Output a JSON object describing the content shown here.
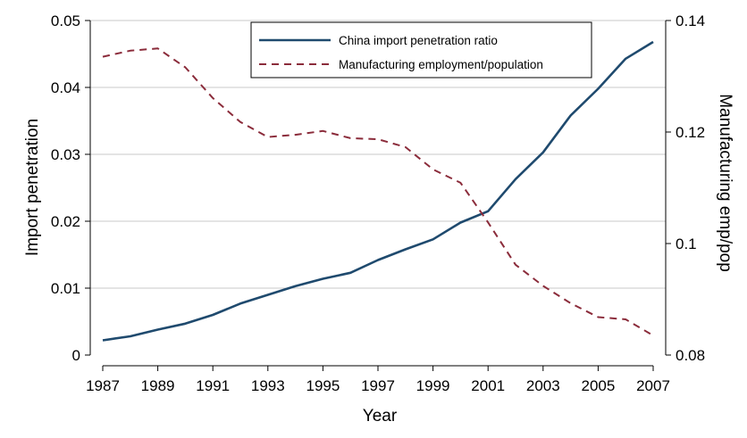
{
  "chart_data": {
    "type": "line",
    "xlabel": "Year",
    "ylabel_left": "Import penetration",
    "ylabel_right": "Manufacturing emp/pop",
    "xlim": [
      1987,
      2007
    ],
    "ylim_left": [
      0,
      0.05
    ],
    "ylim_right": [
      0.08,
      0.14
    ],
    "x_ticks": [
      1987,
      1989,
      1991,
      1993,
      1995,
      1997,
      1999,
      2001,
      2003,
      2005,
      2007
    ],
    "x_tick_labels": [
      "1987",
      "1989",
      "1991",
      "1993",
      "1995",
      "1997",
      "1999",
      "2001",
      "2003",
      "2005",
      "2007"
    ],
    "y_left_ticks": [
      0,
      0.01,
      0.02,
      0.03,
      0.04,
      0.05
    ],
    "y_left_tick_labels": [
      "0",
      "0.01",
      "0.02",
      "0.03",
      "0.04",
      "0.05"
    ],
    "y_right_ticks": [
      0.08,
      0.1,
      0.12,
      0.14
    ],
    "y_right_tick_labels": [
      "0.08",
      "0.1",
      "0.12",
      "0.14"
    ],
    "grid": true,
    "legend_position": "top-right",
    "x": [
      1987,
      1988,
      1989,
      1990,
      1991,
      1992,
      1993,
      1994,
      1995,
      1996,
      1997,
      1998,
      1999,
      2000,
      2001,
      2002,
      2003,
      2004,
      2005,
      2006,
      2007
    ],
    "series": [
      {
        "name": "China import penetration ratio",
        "axis": "left",
        "style": "solid",
        "color": "#1f4a6e",
        "values": [
          0.0022,
          0.0028,
          0.0038,
          0.0047,
          0.006,
          0.0077,
          0.009,
          0.0103,
          0.0114,
          0.0123,
          0.0142,
          0.0158,
          0.0173,
          0.0198,
          0.0215,
          0.0263,
          0.0303,
          0.0358,
          0.0398,
          0.0443,
          0.0468
        ]
      },
      {
        "name": "Manufacturing employment/population",
        "axis": "right",
        "style": "dashed",
        "color": "#8b2c3b",
        "values": [
          0.1335,
          0.1346,
          0.135,
          0.1316,
          0.1261,
          0.1218,
          0.1191,
          0.1195,
          0.1202,
          0.1189,
          0.1187,
          0.1173,
          0.1133,
          0.1109,
          0.1038,
          0.0962,
          0.0924,
          0.0893,
          0.0868,
          0.0864,
          0.0835
        ]
      }
    ]
  }
}
